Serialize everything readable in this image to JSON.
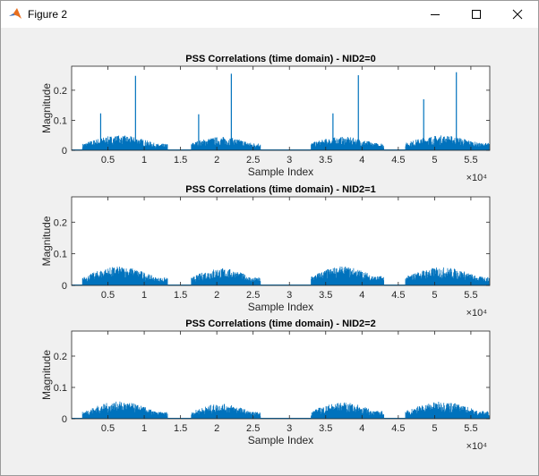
{
  "window": {
    "title": "Figure 2",
    "icons": {
      "app": "matlab-logo-icon",
      "minimize": "minimize-icon",
      "maximize": "maximize-icon",
      "close": "close-icon"
    }
  },
  "chart_data": [
    {
      "type": "line",
      "title": "PSS Correlations (time domain) - NID2=0",
      "xlabel": "Sample Index",
      "ylabel": "Magnitude",
      "x_exponent_label": "×10⁴",
      "xlim": [
        0,
        57600
      ],
      "ylim": [
        0,
        0.28
      ],
      "xticks": [
        5000,
        10000,
        15000,
        20000,
        25000,
        30000,
        35000,
        40000,
        45000,
        50000,
        55000
      ],
      "xtick_labels": [
        "0.5",
        "1",
        "1.5",
        "2",
        "2.5",
        "3",
        "3.5",
        "4",
        "4.5",
        "5",
        "5.5"
      ],
      "yticks": [
        0,
        0.1,
        0.2
      ],
      "ytick_labels": [
        "0",
        "0.1",
        "0.2"
      ],
      "color": "#0072bd",
      "bursts": [
        {
          "x_start": 1500,
          "x_end": 13200,
          "level": 0.022,
          "max_level": 0.05
        },
        {
          "x_start": 16500,
          "x_end": 26000,
          "level": 0.025,
          "max_level": 0.045
        },
        {
          "x_start": 33000,
          "x_end": 43000,
          "level": 0.025,
          "max_level": 0.045
        },
        {
          "x_start": 46000,
          "x_end": 57500,
          "level": 0.025,
          "max_level": 0.05
        }
      ],
      "peaks": [
        {
          "x": 4000,
          "y": 0.123
        },
        {
          "x": 8800,
          "y": 0.248
        },
        {
          "x": 17500,
          "y": 0.12
        },
        {
          "x": 22000,
          "y": 0.255
        },
        {
          "x": 36000,
          "y": 0.123
        },
        {
          "x": 39500,
          "y": 0.25
        },
        {
          "x": 48500,
          "y": 0.17
        },
        {
          "x": 53000,
          "y": 0.26
        }
      ]
    },
    {
      "type": "line",
      "title": "PSS Correlations (time domain) - NID2=1",
      "xlabel": "Sample Index",
      "ylabel": "Magnitude",
      "x_exponent_label": "×10⁴",
      "xlim": [
        0,
        57600
      ],
      "ylim": [
        0,
        0.28
      ],
      "xticks": [
        5000,
        10000,
        15000,
        20000,
        25000,
        30000,
        35000,
        40000,
        45000,
        50000,
        55000
      ],
      "xtick_labels": [
        "0.5",
        "1",
        "1.5",
        "2",
        "2.5",
        "3",
        "3.5",
        "4",
        "4.5",
        "5",
        "5.5"
      ],
      "yticks": [
        0,
        0.1,
        0.2
      ],
      "ytick_labels": [
        "0",
        "0.1",
        "0.2"
      ],
      "color": "#0072bd",
      "bursts": [
        {
          "x_start": 1500,
          "x_end": 13200,
          "level": 0.025,
          "max_level": 0.06
        },
        {
          "x_start": 16500,
          "x_end": 26000,
          "level": 0.025,
          "max_level": 0.055
        },
        {
          "x_start": 33000,
          "x_end": 43000,
          "level": 0.03,
          "max_level": 0.06
        },
        {
          "x_start": 46000,
          "x_end": 57500,
          "level": 0.028,
          "max_level": 0.058
        }
      ],
      "peaks": []
    },
    {
      "type": "line",
      "title": "PSS Correlations (time domain) - NID2=2",
      "xlabel": "Sample Index",
      "ylabel": "Magnitude",
      "x_exponent_label": "×10⁴",
      "xlim": [
        0,
        57600
      ],
      "ylim": [
        0,
        0.28
      ],
      "xticks": [
        5000,
        10000,
        15000,
        20000,
        25000,
        30000,
        35000,
        40000,
        45000,
        50000,
        55000
      ],
      "xtick_labels": [
        "0.5",
        "1",
        "1.5",
        "2",
        "2.5",
        "3",
        "3.5",
        "4",
        "4.5",
        "5",
        "5.5"
      ],
      "yticks": [
        0,
        0.1,
        0.2
      ],
      "ytick_labels": [
        "0",
        "0.1",
        "0.2"
      ],
      "color": "#0072bd",
      "bursts": [
        {
          "x_start": 1500,
          "x_end": 13200,
          "level": 0.022,
          "max_level": 0.055
        },
        {
          "x_start": 16500,
          "x_end": 26000,
          "level": 0.022,
          "max_level": 0.048
        },
        {
          "x_start": 33000,
          "x_end": 43000,
          "level": 0.025,
          "max_level": 0.052
        },
        {
          "x_start": 46000,
          "x_end": 57500,
          "level": 0.025,
          "max_level": 0.055
        }
      ],
      "peaks": []
    }
  ]
}
